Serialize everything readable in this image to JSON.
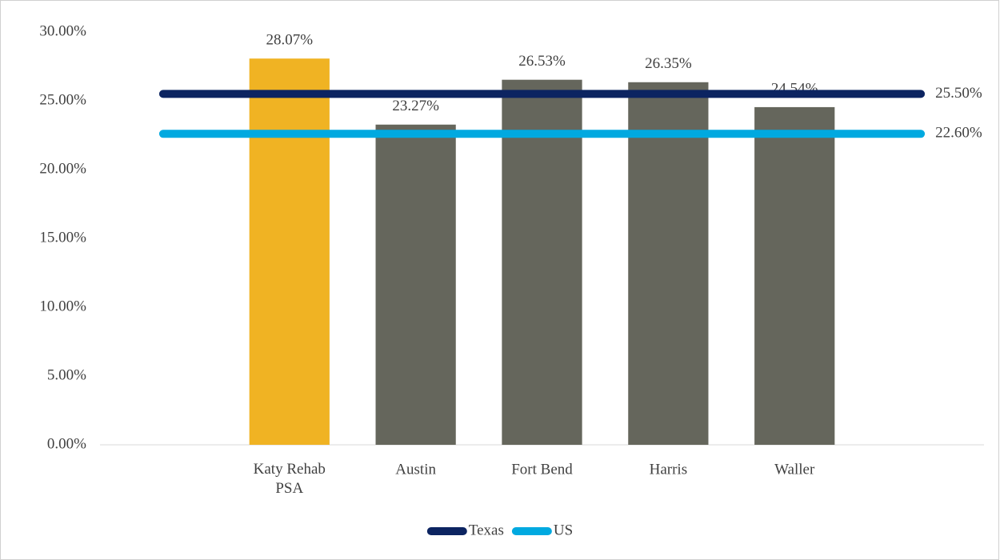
{
  "chart_data": {
    "type": "bar",
    "categories": [
      null,
      "Katy Rehab PSA",
      "Austin",
      "Fort Bend",
      "Harris",
      "Waller",
      null
    ],
    "values": [
      null,
      28.07,
      23.27,
      26.53,
      26.35,
      24.54,
      null
    ],
    "value_labels": [
      null,
      "28.07%",
      "23.27%",
      "26.53%",
      "26.35%",
      "24.54%",
      null
    ],
    "colors": [
      null,
      "#f0b323",
      "#65665c",
      "#65665c",
      "#65665c",
      "#65665c",
      null
    ],
    "lines": [
      {
        "name": "Texas",
        "color": "#0c2461",
        "values": [
          25.5,
          25.5,
          25.5,
          25.5,
          25.5,
          25.5,
          25.5
        ],
        "value_labels": [
          null,
          null,
          null,
          null,
          null,
          null,
          "25.50%"
        ]
      },
      {
        "name": "US",
        "color": "#00a9e0",
        "values": [
          22.6,
          22.6,
          22.6,
          22.6,
          22.6,
          22.6,
          22.6
        ],
        "value_labels": [
          null,
          null,
          null,
          null,
          null,
          null,
          "22.60%"
        ]
      }
    ],
    "ylim": [
      0,
      30
    ],
    "yticks": [
      {
        "value": 0,
        "label": "0.00%"
      },
      {
        "value": 5,
        "label": "5.00%"
      },
      {
        "value": 10,
        "label": "10.00%"
      },
      {
        "value": 15,
        "label": "15.00%"
      },
      {
        "value": 20,
        "label": "20.00%"
      },
      {
        "value": 25,
        "label": "25.00%"
      },
      {
        "value": 30,
        "label": "30.00%"
      }
    ],
    "grid": false,
    "legend": "bottom"
  }
}
